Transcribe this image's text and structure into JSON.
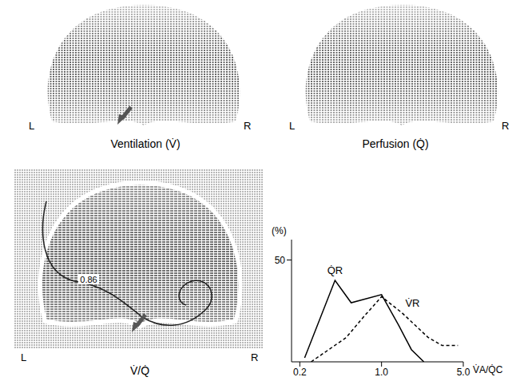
{
  "images": [
    {
      "title": "Ventilation (V̇)",
      "left": "L",
      "right": "R"
    },
    {
      "title": "Perfusion (Q̇)",
      "left": "L",
      "right": "R"
    },
    {
      "title": "V̇/Q̇",
      "left": "L",
      "right": "R",
      "contour": 0.86
    }
  ],
  "chart_data": {
    "type": "line",
    "log": "x",
    "x_label": "V̇A/Q̇C",
    "y_label": "(%)",
    "xlim": [
      0.17,
      5
    ],
    "xticks": [
      0.2,
      {
        "value": 1,
        "label": "1.0"
      },
      {
        "value": 5,
        "label": "5.0"
      }
    ],
    "ylim": [
      0,
      60
    ],
    "yticks": [
      50
    ],
    "series": [
      {
        "name": "Q̇R",
        "color": "#000000",
        "line_style": "solid",
        "x": [
          0.22,
          0.4,
          0.55,
          1.0,
          1.4,
          1.8,
          2.3
        ],
        "values": [
          2,
          40,
          29,
          33,
          18,
          6,
          0
        ]
      },
      {
        "name": "V̇R",
        "color": "#000000",
        "line_style": "dashed",
        "x": [
          0.25,
          0.5,
          0.7,
          1.0,
          1.5,
          2.5,
          3.3,
          4.5
        ],
        "values": [
          0,
          12,
          22,
          32,
          24,
          12,
          8,
          8
        ]
      }
    ]
  }
}
